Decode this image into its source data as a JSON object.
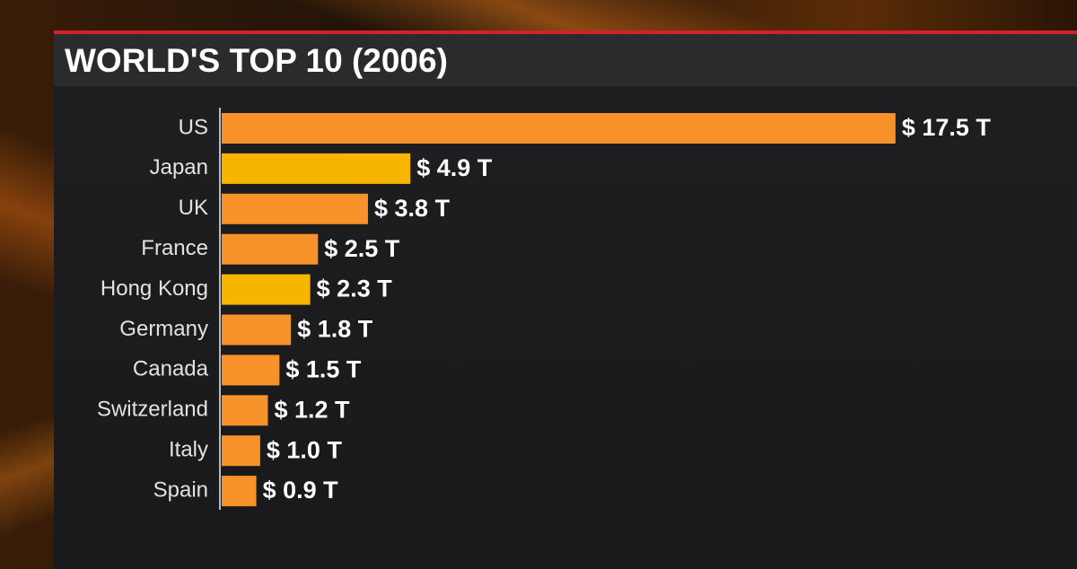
{
  "chart_data": {
    "type": "bar",
    "orientation": "horizontal",
    "title": "WORLD'S TOP 10 (2006)",
    "categories": [
      "US",
      "Japan",
      "UK",
      "France",
      "Hong Kong",
      "Germany",
      "Canada",
      "Switzerland",
      "Italy",
      "Spain"
    ],
    "values": [
      17.5,
      4.9,
      3.8,
      2.5,
      2.3,
      1.8,
      1.5,
      1.2,
      1.0,
      0.9
    ],
    "value_labels": [
      "$ 17.5 T",
      "$ 4.9 T",
      "$ 3.8 T",
      "$ 2.5 T",
      "$ 2.3 T",
      "$ 1.8 T",
      "$ 1.5 T",
      "$ 1.2 T",
      "$ 1.0 T",
      "$ 0.9 T"
    ],
    "colors": [
      "#f7922a",
      "#f7b500",
      "#f7922a",
      "#f7922a",
      "#f7b500",
      "#f7922a",
      "#f7922a",
      "#f7922a",
      "#f7922a",
      "#f7922a"
    ]
  }
}
